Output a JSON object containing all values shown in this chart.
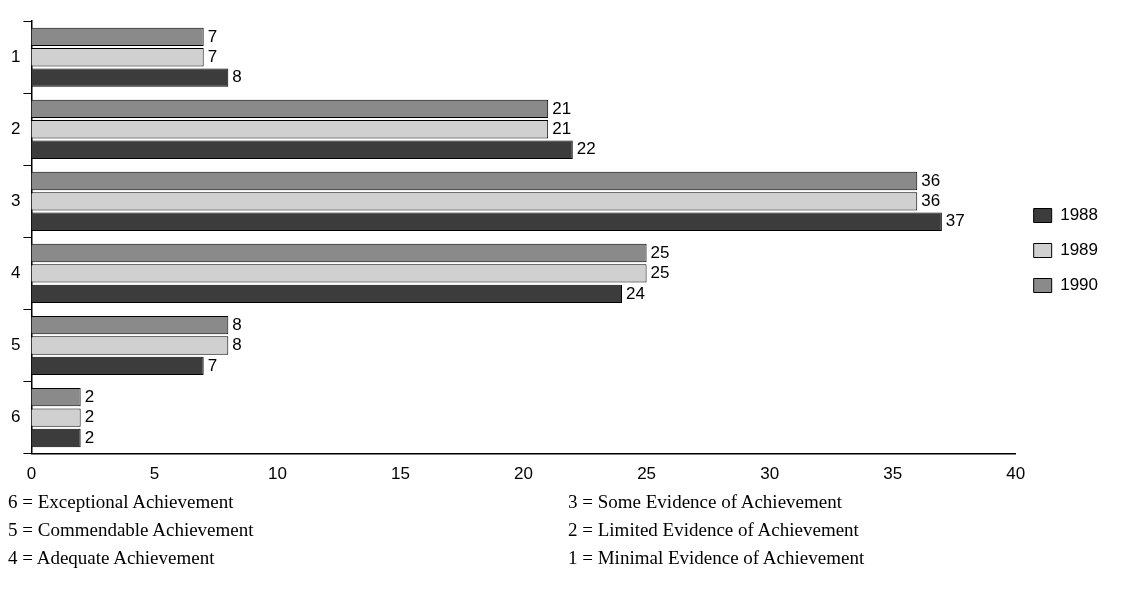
{
  "chart_data": {
    "type": "bar",
    "orientation": "horizontal",
    "categories": [
      "1",
      "2",
      "3",
      "4",
      "5",
      "6"
    ],
    "series": [
      {
        "name": "1988",
        "color": "#3c3c3c",
        "values": [
          8,
          22,
          37,
          24,
          7,
          2
        ]
      },
      {
        "name": "1989",
        "color": "#d0d0d0",
        "values": [
          7,
          21,
          36,
          25,
          8,
          2
        ]
      },
      {
        "name": "1990",
        "color": "#8a8a8a",
        "values": [
          7,
          21,
          36,
          25,
          8,
          2
        ]
      }
    ],
    "xlim": [
      0,
      40
    ],
    "xticks": [
      0,
      5,
      10,
      15,
      20,
      25,
      30,
      35,
      40
    ],
    "grid": false,
    "legend": "right",
    "data_labels": true,
    "annotations": [
      "6 = Exceptional Achievement",
      "3 = Some Evidence of Achievement",
      "5 = Commendable Achievement",
      "2 = Limited Evidence of Achievement",
      "4 = Adequate Achievement",
      "1 = Minimal Evidence of Achievement"
    ]
  }
}
